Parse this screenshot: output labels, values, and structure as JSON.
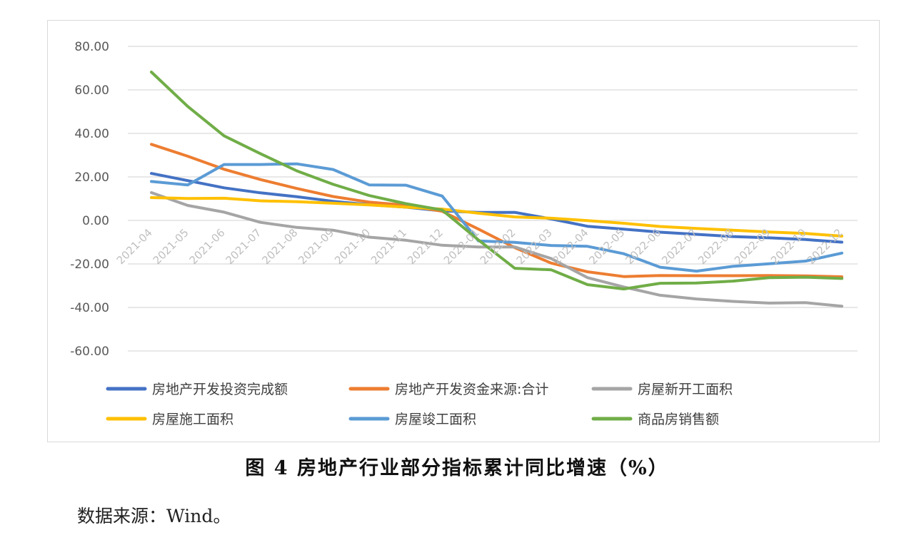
{
  "chart_data": {
    "type": "line",
    "title": "",
    "xlabel": "",
    "ylabel": "",
    "ylim": [
      -60,
      80
    ],
    "yticks": [
      "80.00",
      "60.00",
      "40.00",
      "20.00",
      "0.00",
      "-20.00",
      "-40.00",
      "-60.00"
    ],
    "categories": [
      "2021-04",
      "2021-05",
      "2021-06",
      "2021-07",
      "2021-08",
      "2021-09",
      "2021-10",
      "2021-11",
      "2021-12",
      "2022-01",
      "2022-02",
      "2022-03",
      "2022-04",
      "2022-05",
      "2022-06",
      "2022-07",
      "2022-08",
      "2022-09",
      "2022-10",
      "2022-12"
    ],
    "grid": true,
    "legend_position": "bottom",
    "series": [
      {
        "name": "房地产开发投资完成额",
        "color": "#4472C4",
        "values": [
          21.6,
          18.3,
          15.0,
          12.7,
          10.9,
          8.8,
          7.2,
          6.1,
          4.4,
          3.7,
          3.7,
          0.7,
          -2.7,
          -4.0,
          -5.4,
          -6.4,
          -7.4,
          -8.0,
          -8.8,
          -10.0
        ]
      },
      {
        "name": "房地产开发资金来源:合计",
        "color": "#ED7D31",
        "values": [
          35.0,
          29.5,
          23.5,
          18.8,
          14.7,
          11.0,
          8.4,
          7.0,
          4.2,
          -4.0,
          -12.5,
          -19.6,
          -23.6,
          -25.8,
          -25.3,
          -25.4,
          -25.4,
          -25.3,
          -25.5,
          -25.9
        ]
      },
      {
        "name": "房屋新开工面积",
        "color": "#A5A5A5",
        "values": [
          12.8,
          6.9,
          3.8,
          -0.9,
          -3.2,
          -4.5,
          -7.7,
          -9.1,
          -11.4,
          -12.2,
          -12.2,
          -17.5,
          -26.3,
          -30.6,
          -34.4,
          -36.1,
          -37.2,
          -38.0,
          -37.8,
          -39.4
        ]
      },
      {
        "name": "房屋施工面积",
        "color": "#FFC000",
        "values": [
          10.5,
          10.1,
          10.2,
          9.0,
          8.6,
          7.9,
          7.1,
          6.1,
          5.2,
          3.3,
          1.6,
          1.0,
          -0.1,
          -1.3,
          -2.8,
          -3.7,
          -4.5,
          -5.3,
          -6.0,
          -7.2
        ]
      },
      {
        "name": "房屋竣工面积",
        "color": "#5B9BD5",
        "values": [
          17.9,
          16.3,
          25.7,
          25.7,
          26.0,
          23.4,
          16.3,
          16.2,
          11.2,
          -9.4,
          -10.1,
          -11.5,
          -11.9,
          -15.3,
          -21.5,
          -23.3,
          -21.1,
          -19.9,
          -18.7,
          -15.0
        ]
      },
      {
        "name": "商品房销售额",
        "color": "#70AD47",
        "values": [
          68.2,
          52.4,
          38.9,
          30.7,
          22.8,
          16.6,
          11.4,
          7.7,
          4.8,
          -9.0,
          -22.0,
          -22.7,
          -29.5,
          -31.5,
          -28.9,
          -28.8,
          -27.9,
          -26.3,
          -26.1,
          -26.7
        ]
      }
    ]
  },
  "caption": "图 4   房地产行业部分指标累计同比增速（%）",
  "source_note": "数据来源：Wind。"
}
